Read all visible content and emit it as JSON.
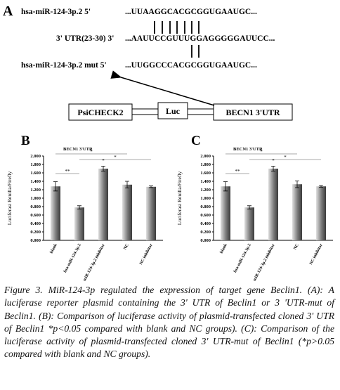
{
  "panel_a": {
    "label": "A",
    "rows": [
      {
        "name": "hsa-miR-124-3p.2  5'",
        "sequence": "...UUAAGGCACGCGGUGAAUGC..."
      },
      {
        "name": "3' UTR(23-30)  3'",
        "sequence": "...AAUUCCGUUUGGAGGGGGAUUCC..."
      },
      {
        "name": "hsa-miR-124-3p.2 mut  5'",
        "sequence": "...UUGGCCCACGCGGUGAAUGC..."
      }
    ],
    "plasmid": [
      "PsiCHECK2",
      "Luc",
      "BECN1 3'UTR"
    ]
  },
  "chart_data": [
    {
      "type": "bar",
      "panel_label": "B",
      "title": "BECN1 3'UTR",
      "y_label": "Luciferasi Renilla/Firefly",
      "categories": [
        "blank",
        "hsa-miR-124-3p.2",
        "hsa-miR-124-3p.2 inhibitor",
        "NC",
        "NC inhibitor"
      ],
      "values": [
        1.28,
        0.78,
        1.7,
        1.32,
        1.27
      ],
      "errors": [
        0.11,
        0.04,
        0.06,
        0.08,
        0.02
      ],
      "color": "#7a7a7a",
      "ylim": [
        0,
        2
      ],
      "yticks": [
        {
          "value": 0,
          "label": "0.000"
        },
        {
          "value": 0.2,
          "label": "0.200"
        },
        {
          "value": 0.4,
          "label": "0.400"
        },
        {
          "value": 0.6,
          "label": "0.600"
        },
        {
          "value": 0.8,
          "label": "0.800"
        },
        {
          "value": 1,
          "label": "1.000"
        },
        {
          "value": 1.2,
          "label": "1.200"
        },
        {
          "value": 1.4,
          "label": "1.400"
        },
        {
          "value": 1.6,
          "label": "1.600"
        },
        {
          "value": 1.8,
          "label": "1.800"
        },
        {
          "value": 2,
          "label": "2.000"
        }
      ],
      "annotations": [
        "*",
        "*",
        "*",
        "**"
      ]
    },
    {
      "type": "bar",
      "panel_label": "C",
      "title": "BECN1 3'UTR",
      "y_label": "Luciferasi Renilla/Firefly",
      "categories": [
        "blank",
        "hsa-miR-124-3p.2",
        "hsa-miR-124-3p.2 inhibitor",
        "NC",
        "NC inhibitor"
      ],
      "values": [
        1.28,
        0.78,
        1.7,
        1.33,
        1.28
      ],
      "errors": [
        0.11,
        0.04,
        0.06,
        0.08,
        0.02
      ],
      "color": "#7a7a7a",
      "ylim": [
        0,
        2
      ],
      "yticks": [
        {
          "value": 0,
          "label": "0.000"
        },
        {
          "value": 0.2,
          "label": "0.200"
        },
        {
          "value": 0.4,
          "label": "0.400"
        },
        {
          "value": 0.6,
          "label": "0.600"
        },
        {
          "value": 0.8,
          "label": "0.800"
        },
        {
          "value": 1,
          "label": "1.000"
        },
        {
          "value": 1.2,
          "label": "1.200"
        },
        {
          "value": 1.4,
          "label": "1.400"
        },
        {
          "value": 1.6,
          "label": "1.600"
        },
        {
          "value": 1.8,
          "label": "1.800"
        },
        {
          "value": 2,
          "label": "2.000"
        }
      ],
      "annotations": [
        "*",
        "*",
        "*",
        "**"
      ]
    }
  ],
  "caption": {
    "label": "Figure 3.",
    "text": "MiR-124-3p regulated the expression of target gene Beclin1. (A): A luciferase reporter plasmid containing the 3' UTR of Beclin1 or 3 'UTR-mut of Beclin1. (B): Comparison of luciferase activity of plasmid-transfected cloned 3' UTR of Beclin1 *p<0.05 compared with blank and NC groups). (C): Comparison of the luciferase activity of plasmid-transfected cloned 3' UTR-mut of Beclin1 (*p>0.05 compared with blank and NC groups)."
  }
}
